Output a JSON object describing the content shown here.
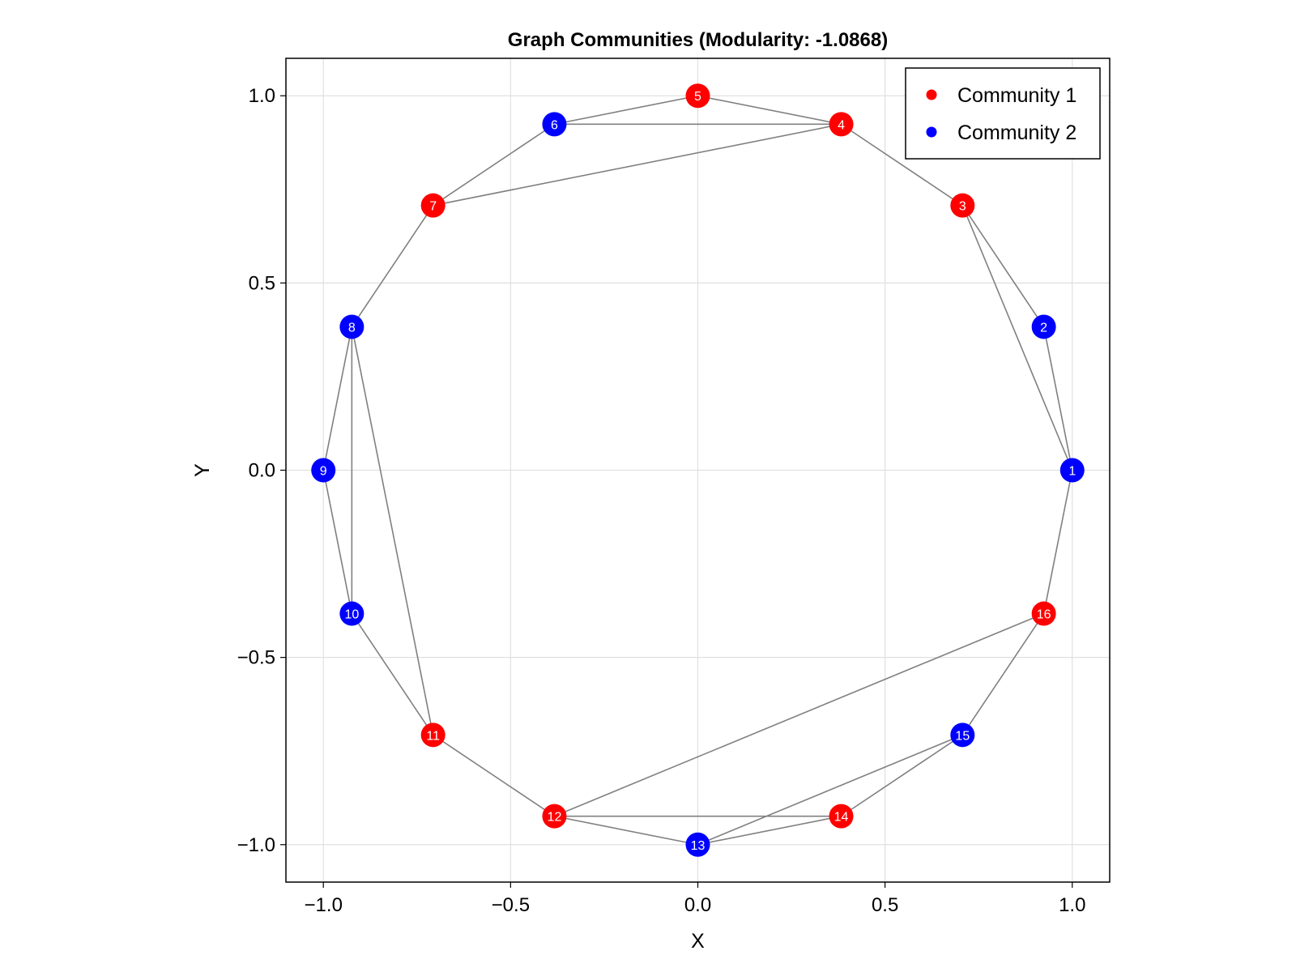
{
  "chart_data": {
    "type": "scatter",
    "title": "Graph Communities (Modularity: -1.0868)",
    "xlabel": "X",
    "ylabel": "Y",
    "xlim": [
      -1.1,
      1.1
    ],
    "ylim": [
      -1.1,
      1.1
    ],
    "xticks": [
      -1.0,
      -0.5,
      0.0,
      0.5,
      1.0
    ],
    "yticks": [
      -1.0,
      -0.5,
      0.0,
      0.5,
      1.0
    ],
    "xtick_labels": [
      "−1.0",
      "−0.5",
      "0.0",
      "0.5",
      "1.0"
    ],
    "ytick_labels": [
      "−1.0",
      "−0.5",
      "0.0",
      "0.5",
      "1.0"
    ],
    "grid": true,
    "legend_position": "top-right",
    "series": [
      {
        "name": "Community 1",
        "color": "#ff0000"
      },
      {
        "name": "Community 2",
        "color": "#0000ff"
      }
    ],
    "nodes": [
      {
        "id": 1,
        "label": "1",
        "x": 1.0,
        "y": 0.0,
        "community": 2
      },
      {
        "id": 2,
        "label": "2",
        "x": 0.924,
        "y": 0.383,
        "community": 2
      },
      {
        "id": 3,
        "label": "3",
        "x": 0.707,
        "y": 0.707,
        "community": 1
      },
      {
        "id": 4,
        "label": "4",
        "x": 0.383,
        "y": 0.924,
        "community": 1
      },
      {
        "id": 5,
        "label": "5",
        "x": 0.0,
        "y": 1.0,
        "community": 1
      },
      {
        "id": 6,
        "label": "6",
        "x": -0.383,
        "y": 0.924,
        "community": 2
      },
      {
        "id": 7,
        "label": "7",
        "x": -0.707,
        "y": 0.707,
        "community": 1
      },
      {
        "id": 8,
        "label": "8",
        "x": -0.924,
        "y": 0.383,
        "community": 2
      },
      {
        "id": 9,
        "label": "9",
        "x": -1.0,
        "y": 0.0,
        "community": 2
      },
      {
        "id": 10,
        "label": "10",
        "x": -0.924,
        "y": -0.383,
        "community": 2
      },
      {
        "id": 11,
        "label": "11",
        "x": -0.707,
        "y": -0.707,
        "community": 1
      },
      {
        "id": 12,
        "label": "12",
        "x": -0.383,
        "y": -0.924,
        "community": 1
      },
      {
        "id": 13,
        "label": "13",
        "x": 0.0,
        "y": -1.0,
        "community": 2
      },
      {
        "id": 14,
        "label": "14",
        "x": 0.383,
        "y": -0.924,
        "community": 1
      },
      {
        "id": 15,
        "label": "15",
        "x": 0.707,
        "y": -0.707,
        "community": 2
      },
      {
        "id": 16,
        "label": "16",
        "x": 0.924,
        "y": -0.383,
        "community": 1
      }
    ],
    "edges": [
      [
        1,
        2
      ],
      [
        1,
        3
      ],
      [
        1,
        16
      ],
      [
        2,
        3
      ],
      [
        3,
        4
      ],
      [
        4,
        5
      ],
      [
        4,
        6
      ],
      [
        4,
        7
      ],
      [
        5,
        6
      ],
      [
        6,
        7
      ],
      [
        7,
        8
      ],
      [
        8,
        9
      ],
      [
        8,
        10
      ],
      [
        8,
        11
      ],
      [
        9,
        10
      ],
      [
        10,
        11
      ],
      [
        11,
        12
      ],
      [
        12,
        13
      ],
      [
        12,
        14
      ],
      [
        12,
        16
      ],
      [
        13,
        14
      ],
      [
        13,
        15
      ],
      [
        14,
        15
      ],
      [
        15,
        16
      ]
    ],
    "edge_color": "#808080",
    "grid_color": "#e0e0e0"
  }
}
